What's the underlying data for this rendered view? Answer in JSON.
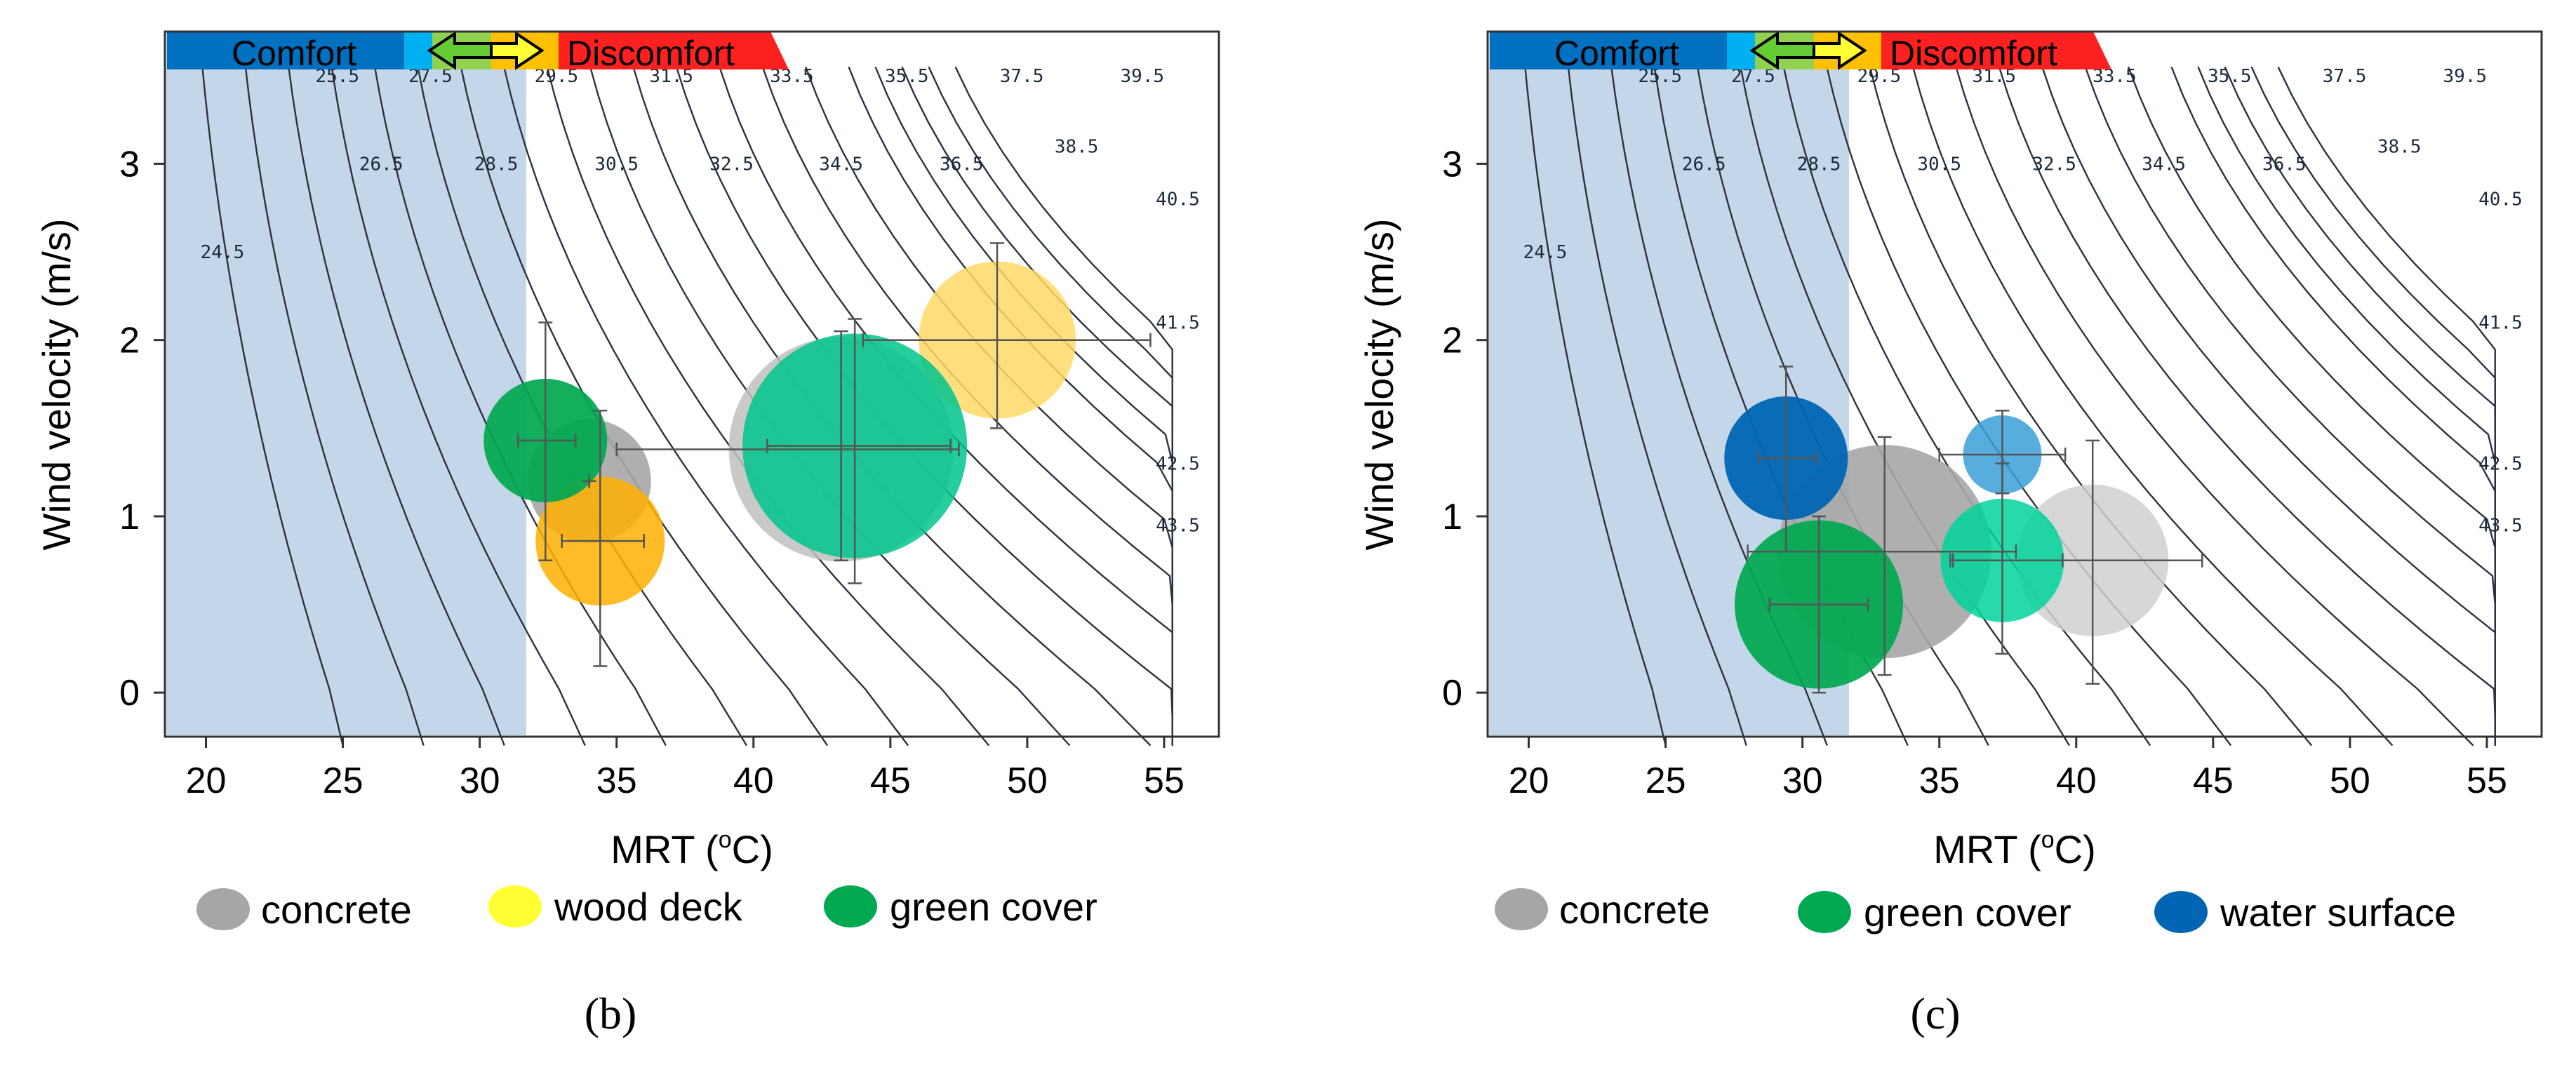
{
  "chart_data": [
    {
      "type": "scatter",
      "panel": "(b)",
      "xlabel": "MRT (°C)",
      "xlabel_main": "MRT (",
      "xlabel_sup": "o",
      "xlabel_end": "C)",
      "ylabel": "Wind velocity (m/s)",
      "xlim": [
        18.5,
        57
      ],
      "ylim": [
        3.75,
        -0.25
      ],
      "x_ticks": [
        20,
        25,
        30,
        35,
        40,
        45,
        50,
        55
      ],
      "y_ticks": [
        0,
        1,
        2,
        3
      ],
      "comfort_limit_mrt": 31.7,
      "comfort_bar": {
        "comfort_label": "Comfort",
        "discomfort_label": "Discomfort"
      },
      "contour_labels": [
        {
          "label": "24.5",
          "x": 20.6,
          "y": 2.5
        },
        {
          "label": "25.5",
          "x": 24.8,
          "y": 3.5
        },
        {
          "label": "26.5",
          "x": 26.4,
          "y": 3.0
        },
        {
          "label": "27.5",
          "x": 28.2,
          "y": 3.5
        },
        {
          "label": "28.5",
          "x": 30.6,
          "y": 3.0
        },
        {
          "label": "29.5",
          "x": 32.8,
          "y": 3.5
        },
        {
          "label": "30.5",
          "x": 35.0,
          "y": 3.0
        },
        {
          "label": "31.5",
          "x": 37.0,
          "y": 3.5
        },
        {
          "label": "32.5",
          "x": 39.2,
          "y": 3.0
        },
        {
          "label": "33.5",
          "x": 41.4,
          "y": 3.5
        },
        {
          "label": "34.5",
          "x": 43.2,
          "y": 3.0
        },
        {
          "label": "35.5",
          "x": 45.6,
          "y": 3.5
        },
        {
          "label": "36.5",
          "x": 47.6,
          "y": 3.0
        },
        {
          "label": "37.5",
          "x": 49.8,
          "y": 3.5
        },
        {
          "label": "38.5",
          "x": 51.8,
          "y": 3.1
        },
        {
          "label": "39.5",
          "x": 54.2,
          "y": 3.5
        },
        {
          "label": "40.5",
          "x": 55.5,
          "y": 2.8
        },
        {
          "label": "41.5",
          "x": 55.5,
          "y": 2.1
        },
        {
          "label": "42.5",
          "x": 55.5,
          "y": 1.3
        },
        {
          "label": "43.5",
          "x": 55.5,
          "y": 0.95
        }
      ],
      "series": [
        {
          "name": "concrete",
          "color": "#a6a6a6",
          "opacity": 0.9,
          "mrt": 34.0,
          "v": 1.2,
          "size": 2.2,
          "x_err": [
            34.0,
            34.0
          ],
          "y_err": [
            1.2,
            1.2
          ]
        },
        {
          "name": "concrete",
          "color": "#bfbfbf",
          "opacity": 0.85,
          "mrt": 43.2,
          "v": 1.38,
          "size": 4.0,
          "x_err": [
            35.0,
            47.5
          ],
          "y_err": [
            0.75,
            2.05
          ]
        },
        {
          "name": "wood deck",
          "color": "#ffb000",
          "opacity": 0.85,
          "mrt": 34.4,
          "v": 0.86,
          "size": 2.3,
          "x_err": [
            33.0,
            36.0
          ],
          "y_err": [
            0.15,
            1.6
          ]
        },
        {
          "name": "wood deck",
          "color": "#ffd966",
          "opacity": 0.85,
          "mrt": 48.9,
          "v": 2.0,
          "size": 2.8,
          "x_err": [
            44.0,
            54.5
          ],
          "y_err": [
            1.5,
            2.55
          ]
        },
        {
          "name": "green cover",
          "color": "#00a84f",
          "opacity": 0.92,
          "mrt": 32.4,
          "v": 1.43,
          "size": 2.2,
          "x_err": [
            31.4,
            33.5
          ],
          "y_err": [
            0.75,
            2.1
          ]
        },
        {
          "name": "green cover",
          "color": "#00c48c",
          "opacity": 0.85,
          "mrt": 43.7,
          "v": 1.4,
          "size": 4.0,
          "x_err": [
            40.5,
            47.2
          ],
          "y_err": [
            0.62,
            2.12
          ]
        }
      ],
      "legend": [
        {
          "label": "concrete",
          "color": "#a6a6a6"
        },
        {
          "label": "wood deck",
          "color": "#ffff33"
        },
        {
          "label": "green cover",
          "color": "#00a84f"
        }
      ]
    },
    {
      "type": "scatter",
      "panel": "(c)",
      "xlabel": "MRT (°C)",
      "xlabel_main": "MRT (",
      "xlabel_sup": "o",
      "xlabel_end": "C)",
      "ylabel": "Wind velocity (m/s)",
      "xlim": [
        18.5,
        57
      ],
      "ylim": [
        3.75,
        -0.25
      ],
      "x_ticks": [
        20,
        25,
        30,
        35,
        40,
        45,
        50,
        55
      ],
      "y_ticks": [
        0,
        1,
        2,
        3
      ],
      "comfort_limit_mrt": 31.7,
      "comfort_bar": {
        "comfort_label": "Comfort",
        "discomfort_label": "Discomfort"
      },
      "contour_labels": [
        {
          "label": "24.5",
          "x": 20.6,
          "y": 2.5
        },
        {
          "label": "25.5",
          "x": 24.8,
          "y": 3.5
        },
        {
          "label": "26.5",
          "x": 26.4,
          "y": 3.0
        },
        {
          "label": "27.5",
          "x": 28.2,
          "y": 3.5
        },
        {
          "label": "28.5",
          "x": 30.6,
          "y": 3.0
        },
        {
          "label": "29.5",
          "x": 32.8,
          "y": 3.5
        },
        {
          "label": "30.5",
          "x": 35.0,
          "y": 3.0
        },
        {
          "label": "31.5",
          "x": 37.0,
          "y": 3.5
        },
        {
          "label": "32.5",
          "x": 39.2,
          "y": 3.0
        },
        {
          "label": "33.5",
          "x": 41.4,
          "y": 3.5
        },
        {
          "label": "34.5",
          "x": 43.2,
          "y": 3.0
        },
        {
          "label": "35.5",
          "x": 45.6,
          "y": 3.5
        },
        {
          "label": "36.5",
          "x": 47.6,
          "y": 3.0
        },
        {
          "label": "37.5",
          "x": 49.8,
          "y": 3.5
        },
        {
          "label": "38.5",
          "x": 51.8,
          "y": 3.1
        },
        {
          "label": "39.5",
          "x": 54.2,
          "y": 3.5
        },
        {
          "label": "40.5",
          "x": 55.5,
          "y": 2.8
        },
        {
          "label": "41.5",
          "x": 55.5,
          "y": 2.1
        },
        {
          "label": "42.5",
          "x": 55.5,
          "y": 1.3
        },
        {
          "label": "43.5",
          "x": 55.5,
          "y": 0.95
        }
      ],
      "series": [
        {
          "name": "concrete",
          "color": "#a6a6a6",
          "opacity": 0.9,
          "mrt": 33.0,
          "v": 0.8,
          "size": 3.8,
          "x_err": [
            28.0,
            37.8
          ],
          "y_err": [
            0.1,
            1.45
          ]
        },
        {
          "name": "concrete",
          "color": "#d0d0d0",
          "opacity": 0.85,
          "mrt": 40.6,
          "v": 0.75,
          "size": 2.7,
          "x_err": [
            35.5,
            44.6
          ],
          "y_err": [
            0.05,
            1.43
          ]
        },
        {
          "name": "green cover",
          "color": "#00a84f",
          "opacity": 0.92,
          "mrt": 30.6,
          "v": 0.5,
          "size": 3.0,
          "x_err": [
            28.8,
            32.4
          ],
          "y_err": [
            0.0,
            1.0
          ]
        },
        {
          "name": "green cover",
          "color": "#00d49a",
          "opacity": 0.85,
          "mrt": 37.3,
          "v": 0.75,
          "size": 2.2,
          "x_err": [
            35.4,
            39.5
          ],
          "y_err": [
            0.22,
            1.3
          ]
        },
        {
          "name": "water surface",
          "color": "#0066b3",
          "opacity": 0.95,
          "mrt": 29.4,
          "v": 1.33,
          "size": 2.2,
          "x_err": [
            28.4,
            30.5
          ],
          "y_err": [
            0.8,
            1.85
          ]
        },
        {
          "name": "water surface",
          "color": "#3aa0d8",
          "opacity": 0.85,
          "mrt": 37.3,
          "v": 1.35,
          "size": 1.4,
          "x_err": [
            35.0,
            39.6
          ],
          "y_err": [
            1.13,
            1.6
          ]
        }
      ],
      "legend": [
        {
          "label": "concrete",
          "color": "#a6a6a6"
        },
        {
          "label": "green cover",
          "color": "#00a84f"
        },
        {
          "label": "water surface",
          "color": "#0066b3"
        }
      ]
    }
  ]
}
